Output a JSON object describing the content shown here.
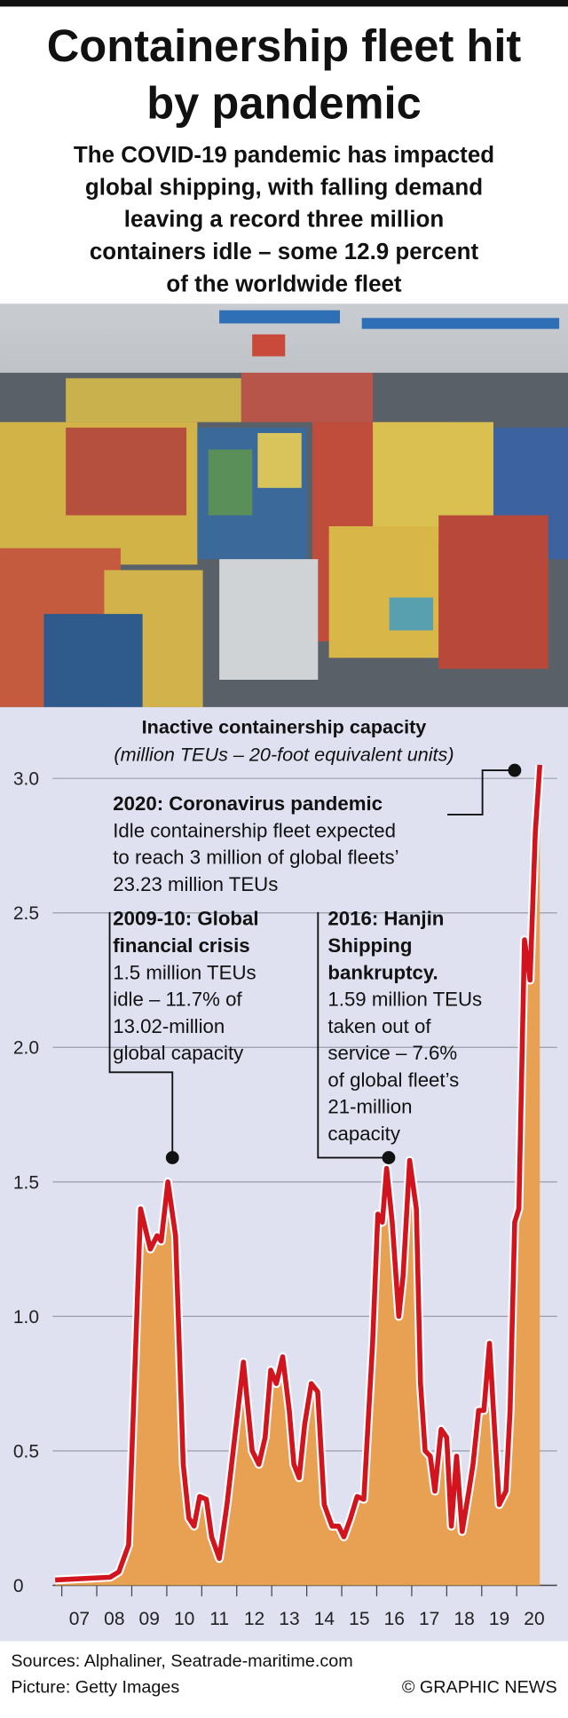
{
  "chart_data": {
    "type": "area",
    "title": "Containership fleet hit by pandemic",
    "subtitle": [
      "The COVID-19 pandemic has impacted",
      "global shipping, with falling demand",
      "leaving a record three million",
      "containers idle – some 12.9 percent",
      "of the worldwide fleet"
    ],
    "chart_title": "Inactive containership capacity",
    "chart_subtitle": "(million TEUs – 20-foot equivalent units)",
    "x": [
      2006.31,
      2007.88,
      2008.13,
      2008.41,
      2008.75,
      2009.03,
      2009.22,
      2009.34,
      2009.53,
      2009.75,
      2009.97,
      2010.13,
      2010.28,
      2010.44,
      2010.63,
      2010.78,
      2011.0,
      2011.22,
      2011.69,
      2011.94,
      2012.13,
      2012.31,
      2012.47,
      2012.63,
      2012.81,
      2013.0,
      2013.13,
      2013.28,
      2013.44,
      2013.63,
      2013.81,
      2014.0,
      2014.22,
      2014.41,
      2014.56,
      2014.75,
      2014.94,
      2015.13,
      2015.38,
      2015.53,
      2015.66,
      2015.78,
      2015.94,
      2016.13,
      2016.25,
      2016.44,
      2016.63,
      2016.75,
      2016.88,
      2017.03,
      2017.16,
      2017.34,
      2017.5,
      2017.63,
      2017.78,
      2017.94,
      2018.13,
      2018.25,
      2018.41,
      2018.56,
      2018.72,
      2018.88,
      2019.0,
      2019.19,
      2019.31,
      2019.44,
      2019.56,
      2019.72,
      2019.88,
      2020.03,
      2020.16
    ],
    "values": [
      0.02,
      0.03,
      0.05,
      0.15,
      1.4,
      1.25,
      1.3,
      1.28,
      1.5,
      1.3,
      0.45,
      0.25,
      0.22,
      0.33,
      0.32,
      0.18,
      0.1,
      0.3,
      0.83,
      0.5,
      0.45,
      0.55,
      0.8,
      0.75,
      0.85,
      0.65,
      0.45,
      0.4,
      0.6,
      0.75,
      0.72,
      0.3,
      0.22,
      0.22,
      0.18,
      0.25,
      0.33,
      0.32,
      0.9,
      1.38,
      1.35,
      1.55,
      1.35,
      1.0,
      1.15,
      1.58,
      1.4,
      0.75,
      0.5,
      0.48,
      0.35,
      0.58,
      0.55,
      0.22,
      0.48,
      0.2,
      0.35,
      0.45,
      0.65,
      0.65,
      0.9,
      0.55,
      0.3,
      0.35,
      0.65,
      1.35,
      1.4,
      2.4,
      2.25,
      2.8,
      3.05
    ],
    "color": "#d2141e",
    "fill_color": "#e8a052",
    "xlim": [
      2006.3,
      2020.4
    ],
    "xticks": [
      {
        "value": 2007,
        "label": "07"
      },
      {
        "value": 2008,
        "label": "08"
      },
      {
        "value": 2009,
        "label": "09"
      },
      {
        "value": 2010,
        "label": "10"
      },
      {
        "value": 2011,
        "label": "11"
      },
      {
        "value": 2012,
        "label": "12"
      },
      {
        "value": 2013,
        "label": "13"
      },
      {
        "value": 2014,
        "label": "14"
      },
      {
        "value": 2015,
        "label": "15"
      },
      {
        "value": 2016,
        "label": "16"
      },
      {
        "value": 2017,
        "label": "17"
      },
      {
        "value": 2018,
        "label": "18"
      },
      {
        "value": 2019,
        "label": "19"
      },
      {
        "value": 2020,
        "label": "20"
      }
    ],
    "ylim": [
      0,
      3
    ],
    "yticks": [
      0,
      0.5,
      {
        "value": 1,
        "label": "1.0"
      },
      1.5,
      {
        "value": 2,
        "label": "2.0"
      },
      2.5,
      {
        "value": 3,
        "label": "3.0"
      }
    ],
    "grid": true,
    "annotations": [
      {
        "title_lines": [
          "2020: Coronavirus pandemic"
        ],
        "lines": [
          "Idle containership fleet expected",
          "to reach 3 million of global fleets’",
          "23.23 million TEUs"
        ],
        "x": 2019.44,
        "y": 3.03
      },
      {
        "title_lines": [
          "2009-10: Global",
          "financial crisis"
        ],
        "lines": [
          "1.5 million TEUs",
          "idle – 11.7% of",
          "13.02-million",
          "global capacity"
        ],
        "x": 2009.66,
        "y": 1.59
      },
      {
        "title_lines": [
          "2016: Hanjin",
          "Shipping",
          "bankruptcy."
        ],
        "lines": [
          "1.59 million TEUs",
          "taken out of",
          "service –  7.6%",
          "of global fleet’s",
          "21-million",
          "capacity"
        ],
        "x": 2015.84,
        "y": 1.59
      }
    ],
    "sources": "Sources: Alphaliner, Seatrade-maritime.com",
    "picture_credit": "Picture: Getty Images",
    "credit": "© GRAPHIC NEWS"
  }
}
